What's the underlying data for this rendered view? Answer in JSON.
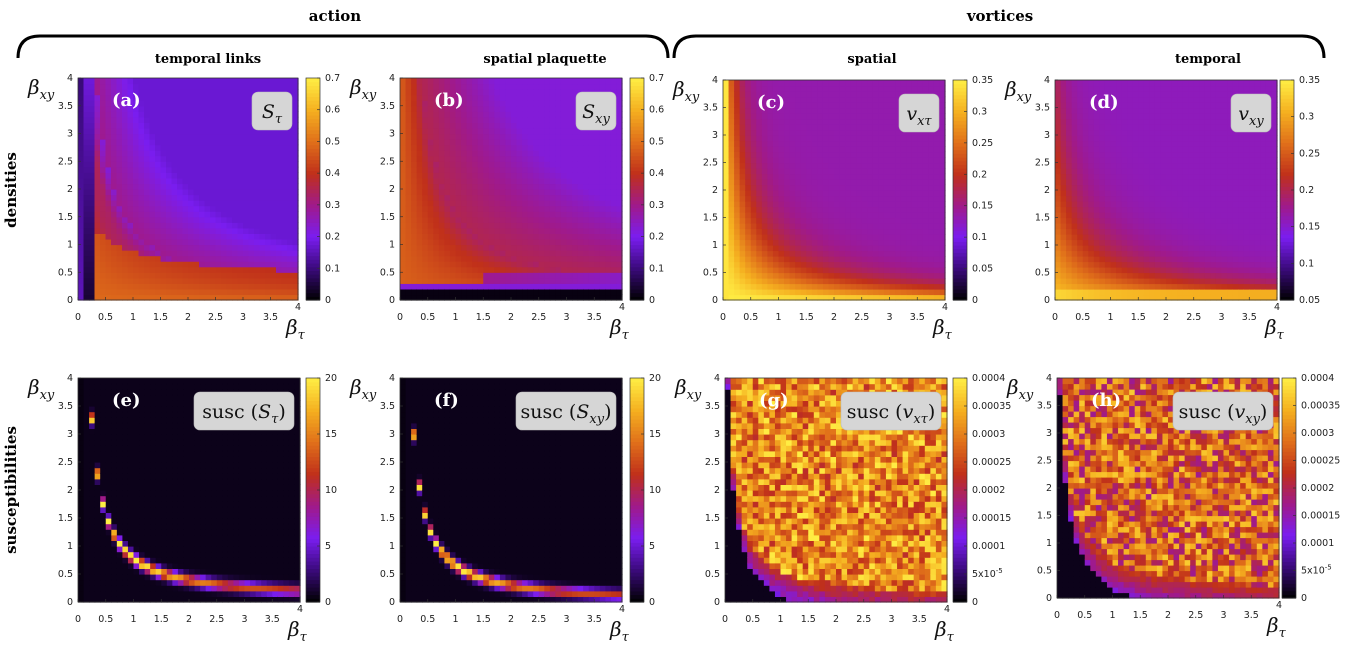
{
  "headers": {
    "group_left": "action",
    "group_right": "vortices",
    "col1": "temporal links",
    "col2": "spatial plaquette",
    "col3": "spatial",
    "col4": "temporal",
    "row1": "densities",
    "row2": "susceptibilities"
  },
  "axis_labels": {
    "x": "β",
    "x_sub": "τ",
    "y": "β",
    "y_sub": "xy"
  },
  "colorscale": [
    "#000000",
    "#3a0a7a",
    "#7a1df0",
    "#a01a8a",
    "#c0301a",
    "#e0701a",
    "#f5b020",
    "#ffee44"
  ],
  "chart_data": [
    {
      "type": "heatmap",
      "panel": "(a)",
      "quantity": "S",
      "quantity_sub": "τ",
      "quantity_wrap": "",
      "xlim": [
        0,
        4
      ],
      "ylim": [
        0,
        4
      ],
      "xticks": [
        "0",
        "0.5",
        "1",
        "1.5",
        "2",
        "2.5",
        "3",
        "3.5",
        "4"
      ],
      "yticks": [
        "0",
        "0.5",
        "1",
        "1.5",
        "2",
        "2.5",
        "3",
        "3.5",
        "4"
      ],
      "colorbar": {
        "range": [
          0,
          0.7
        ],
        "ticks": [
          "0",
          "0.1",
          "0.2",
          "0.3",
          "0.4",
          "0.5",
          "0.6",
          "0.7"
        ]
      },
      "model": "a"
    },
    {
      "type": "heatmap",
      "panel": "(b)",
      "quantity": "S",
      "quantity_sub": "xy",
      "quantity_wrap": "",
      "xlim": [
        0,
        4
      ],
      "ylim": [
        0,
        4
      ],
      "xticks": [
        "0",
        "0.5",
        "1",
        "1.5",
        "2",
        "2.5",
        "3",
        "3.5",
        "4"
      ],
      "yticks": [
        "0",
        "0.5",
        "1",
        "1.5",
        "2",
        "2.5",
        "3",
        "3.5",
        "4"
      ],
      "colorbar": {
        "range": [
          0,
          0.7
        ],
        "ticks": [
          "0",
          "0.1",
          "0.2",
          "0.3",
          "0.4",
          "0.5",
          "0.6",
          "0.7"
        ]
      },
      "model": "b"
    },
    {
      "type": "heatmap",
      "panel": "(c)",
      "quantity": "v",
      "quantity_sub": "xτ",
      "quantity_wrap": "",
      "xlim": [
        0,
        4
      ],
      "ylim": [
        0,
        4
      ],
      "xticks": [
        "0",
        "0.5",
        "1",
        "1.5",
        "2",
        "2.5",
        "3",
        "3.5",
        "4"
      ],
      "yticks": [
        "0",
        "0.5",
        "1",
        "1.5",
        "2",
        "2.5",
        "3",
        "3.5",
        "4"
      ],
      "colorbar": {
        "range": [
          0,
          0.35
        ],
        "ticks": [
          "0",
          "0.05",
          "0.1",
          "0.15",
          "0.2",
          "0.25",
          "0.3",
          "0.35"
        ]
      },
      "model": "c"
    },
    {
      "type": "heatmap",
      "panel": "(d)",
      "quantity": "v",
      "quantity_sub": "xy",
      "quantity_wrap": "",
      "xlim": [
        0,
        4
      ],
      "ylim": [
        0,
        4
      ],
      "xticks": [
        "0",
        "0.5",
        "1",
        "1.5",
        "2",
        "2.5",
        "3",
        "3.5",
        "4"
      ],
      "yticks": [
        "0",
        "0.5",
        "1",
        "1.5",
        "2",
        "2.5",
        "3",
        "3.5",
        "4"
      ],
      "colorbar": {
        "range": [
          0.05,
          0.35
        ],
        "ticks": [
          "0.05",
          "0.1",
          "0.15",
          "0.2",
          "0.25",
          "0.3",
          "0.35"
        ]
      },
      "model": "d"
    },
    {
      "type": "heatmap",
      "panel": "(e)",
      "quantity": "S",
      "quantity_sub": "τ",
      "quantity_wrap": "susc",
      "xlim": [
        0,
        4
      ],
      "ylim": [
        0,
        4
      ],
      "xticks": [
        "0",
        "0.5",
        "1",
        "1.5",
        "2",
        "2.5",
        "3",
        "3.5",
        "4"
      ],
      "yticks": [
        "0",
        "0.5",
        "1",
        "1.5",
        "2",
        "2.5",
        "3",
        "3.5",
        "4"
      ],
      "colorbar": {
        "range": [
          0,
          20
        ],
        "ticks": [
          "0",
          "5",
          "10",
          "15",
          "20"
        ]
      },
      "model": "e"
    },
    {
      "type": "heatmap",
      "panel": "(f)",
      "quantity": "S",
      "quantity_sub": "xy",
      "quantity_wrap": "susc",
      "xlim": [
        0,
        4
      ],
      "ylim": [
        0,
        4
      ],
      "xticks": [
        "0",
        "0.5",
        "1",
        "1.5",
        "2",
        "2.5",
        "3",
        "3.5",
        "4"
      ],
      "yticks": [
        "0",
        "0.5",
        "1",
        "1.5",
        "2",
        "2.5",
        "3",
        "3.5",
        "4"
      ],
      "colorbar": {
        "range": [
          0,
          20
        ],
        "ticks": [
          "0",
          "5",
          "10",
          "15",
          "20"
        ]
      },
      "model": "f"
    },
    {
      "type": "heatmap",
      "panel": "(g)",
      "quantity": "v",
      "quantity_sub": "xτ",
      "quantity_wrap": "susc",
      "xlim": [
        0,
        4
      ],
      "ylim": [
        0,
        4
      ],
      "xticks": [
        "0",
        "0.5",
        "1",
        "1.5",
        "2",
        "2.5",
        "3",
        "3.5",
        "4"
      ],
      "yticks": [
        "0",
        "0.5",
        "1",
        "1.5",
        "2",
        "2.5",
        "3",
        "3.5",
        "4"
      ],
      "colorbar": {
        "range": [
          0,
          0.0004
        ],
        "ticks": [
          "0",
          "5x10-5",
          "0.0001",
          "0.00015",
          "0.0002",
          "0.00025",
          "0.0003",
          "0.00035",
          "0.0004"
        ]
      },
      "model": "g"
    },
    {
      "type": "heatmap",
      "panel": "(h)",
      "quantity": "v",
      "quantity_sub": "xy",
      "quantity_wrap": "susc",
      "xlim": [
        0,
        4
      ],
      "ylim": [
        0,
        4
      ],
      "xticks": [
        "0",
        "0.5",
        "1",
        "1.5",
        "2",
        "2.5",
        "3",
        "3.5",
        "4"
      ],
      "yticks": [
        "0",
        "0.5",
        "1",
        "1.5",
        "2",
        "2.5",
        "3",
        "3.5",
        "4"
      ],
      "colorbar": {
        "range": [
          0,
          0.0004
        ],
        "ticks": [
          "0",
          "5x10-5",
          "0.0001",
          "0.00015",
          "0.0002",
          "0.00025",
          "0.0003",
          "0.00035",
          "0.0004"
        ]
      },
      "model": "h"
    }
  ]
}
